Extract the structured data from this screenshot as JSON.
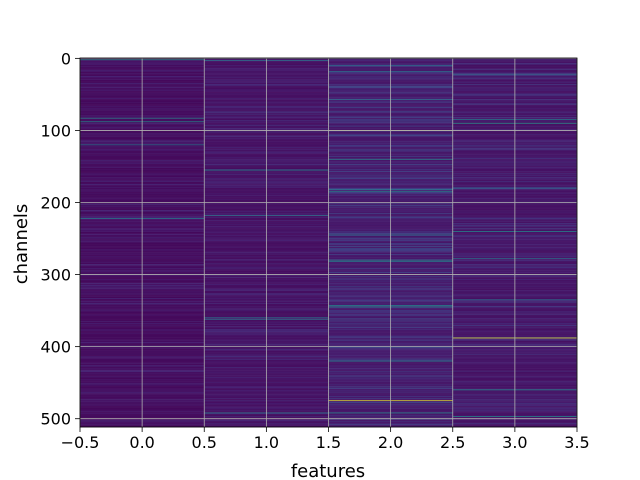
{
  "chart_data": {
    "type": "heatmap",
    "title": "",
    "xlabel": "features",
    "ylabel": "channels",
    "xlim": [
      -0.5,
      3.5
    ],
    "ylim": [
      511.5,
      -0.5
    ],
    "columns": [
      0,
      1,
      2,
      3
    ],
    "rows": 512,
    "colormap": "viridis",
    "xticks": [
      -0.5,
      0.0,
      0.5,
      1.0,
      1.5,
      2.0,
      2.5,
      3.0,
      3.5
    ],
    "xtick_labels": [
      "−0.5",
      "0.0",
      "0.5",
      "1.0",
      "1.5",
      "2.0",
      "2.5",
      "3.0",
      "3.5"
    ],
    "yticks": [
      0,
      100,
      200,
      300,
      400,
      500
    ],
    "ytick_labels": [
      "0",
      "100",
      "200",
      "300",
      "400",
      "500"
    ],
    "grid": true,
    "highlights": [
      {
        "column": 0,
        "channels": [
          2,
          83,
          88,
          120,
          222
        ]
      },
      {
        "column": 1,
        "channels": [
          3,
          155,
          218,
          360,
          362,
          492
        ]
      },
      {
        "column": 2,
        "channels": [
          10,
          18,
          57,
          100,
          140,
          182,
          185,
          245,
          280,
          282,
          343,
          345,
          420,
          475,
          492
        ]
      },
      {
        "column": 3,
        "channels": [
          22,
          85,
          90,
          180,
          240,
          278,
          335,
          388,
          460,
          497
        ]
      }
    ],
    "peak_channels": [
      {
        "column": 2,
        "channel": 100
      },
      {
        "column": 2,
        "channel": 475
      },
      {
        "column": 3,
        "channel": 388
      }
    ]
  }
}
